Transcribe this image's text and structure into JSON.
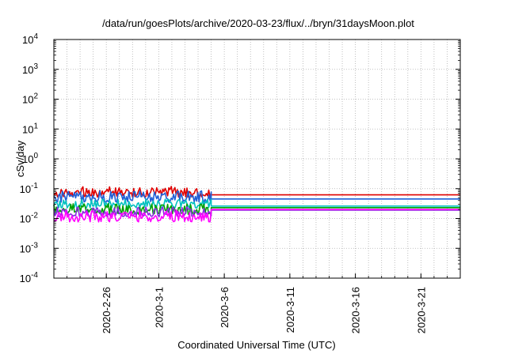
{
  "chart_data": {
    "type": "line",
    "title": "/data/run/goesPlots/archive/2020-03-23/flux/../bryn/31daysMoon.plot",
    "xlabel": "Coordinated Universal Time (UTC)",
    "ylabel": "cSv/day",
    "yscale": "log",
    "ylim": [
      0.0001,
      10000
    ],
    "xlim": [
      "2020-02-22",
      "2020-03-24"
    ],
    "grid": true,
    "y_ticks": [
      {
        "base": "10",
        "exp": "-4"
      },
      {
        "base": "10",
        "exp": "-3"
      },
      {
        "base": "10",
        "exp": "-2"
      },
      {
        "base": "10",
        "exp": "-1"
      },
      {
        "base": "10",
        "exp": "0"
      },
      {
        "base": "10",
        "exp": "1"
      },
      {
        "base": "10",
        "exp": "2"
      },
      {
        "base": "10",
        "exp": "3"
      },
      {
        "base": "10",
        "exp": "4"
      }
    ],
    "x_ticks": [
      "2020-2-26",
      "2020-3-1",
      "2020-3-6",
      "2020-3-11",
      "2020-3-16",
      "2020-3-21"
    ],
    "x_tick_dates": [
      "2020-02-26",
      "2020-03-01",
      "2020-03-06",
      "2020-03-11",
      "2020-03-16",
      "2020-03-21"
    ],
    "series": [
      {
        "color": "#e00000",
        "measured_range": [
          0.045,
          0.12
        ],
        "dates": [
          "2020-03-05",
          "2020-03-24"
        ],
        "values": [
          0.062,
          0.062
        ]
      },
      {
        "color": "#1f5fd6",
        "measured_range": [
          0.03,
          0.085
        ],
        "dates": [
          "2020-03-05",
          "2020-03-24"
        ],
        "values": [
          0.045,
          0.045
        ]
      },
      {
        "color": "#00c0c0",
        "measured_range": [
          0.02,
          0.045
        ],
        "dates": [
          "2020-03-05",
          "2020-03-24"
        ],
        "values": [
          0.026,
          0.026
        ]
      },
      {
        "color": "#00a000",
        "measured_range": [
          0.012,
          0.032
        ],
        "dates": [
          "2020-03-05",
          "2020-03-24"
        ],
        "values": [
          0.023,
          0.023
        ]
      },
      {
        "color": "#8a2be2",
        "measured_range": [
          0.01,
          0.025
        ],
        "dates": [
          "2020-03-05",
          "2020-03-24"
        ],
        "values": [
          0.019,
          0.019
        ]
      },
      {
        "color": "#ff00ff",
        "measured_range": [
          0.0065,
          0.02
        ],
        "dates": [
          "2020-03-05",
          "2020-03-24"
        ],
        "values": [
          0.02,
          0.02
        ]
      }
    ]
  }
}
